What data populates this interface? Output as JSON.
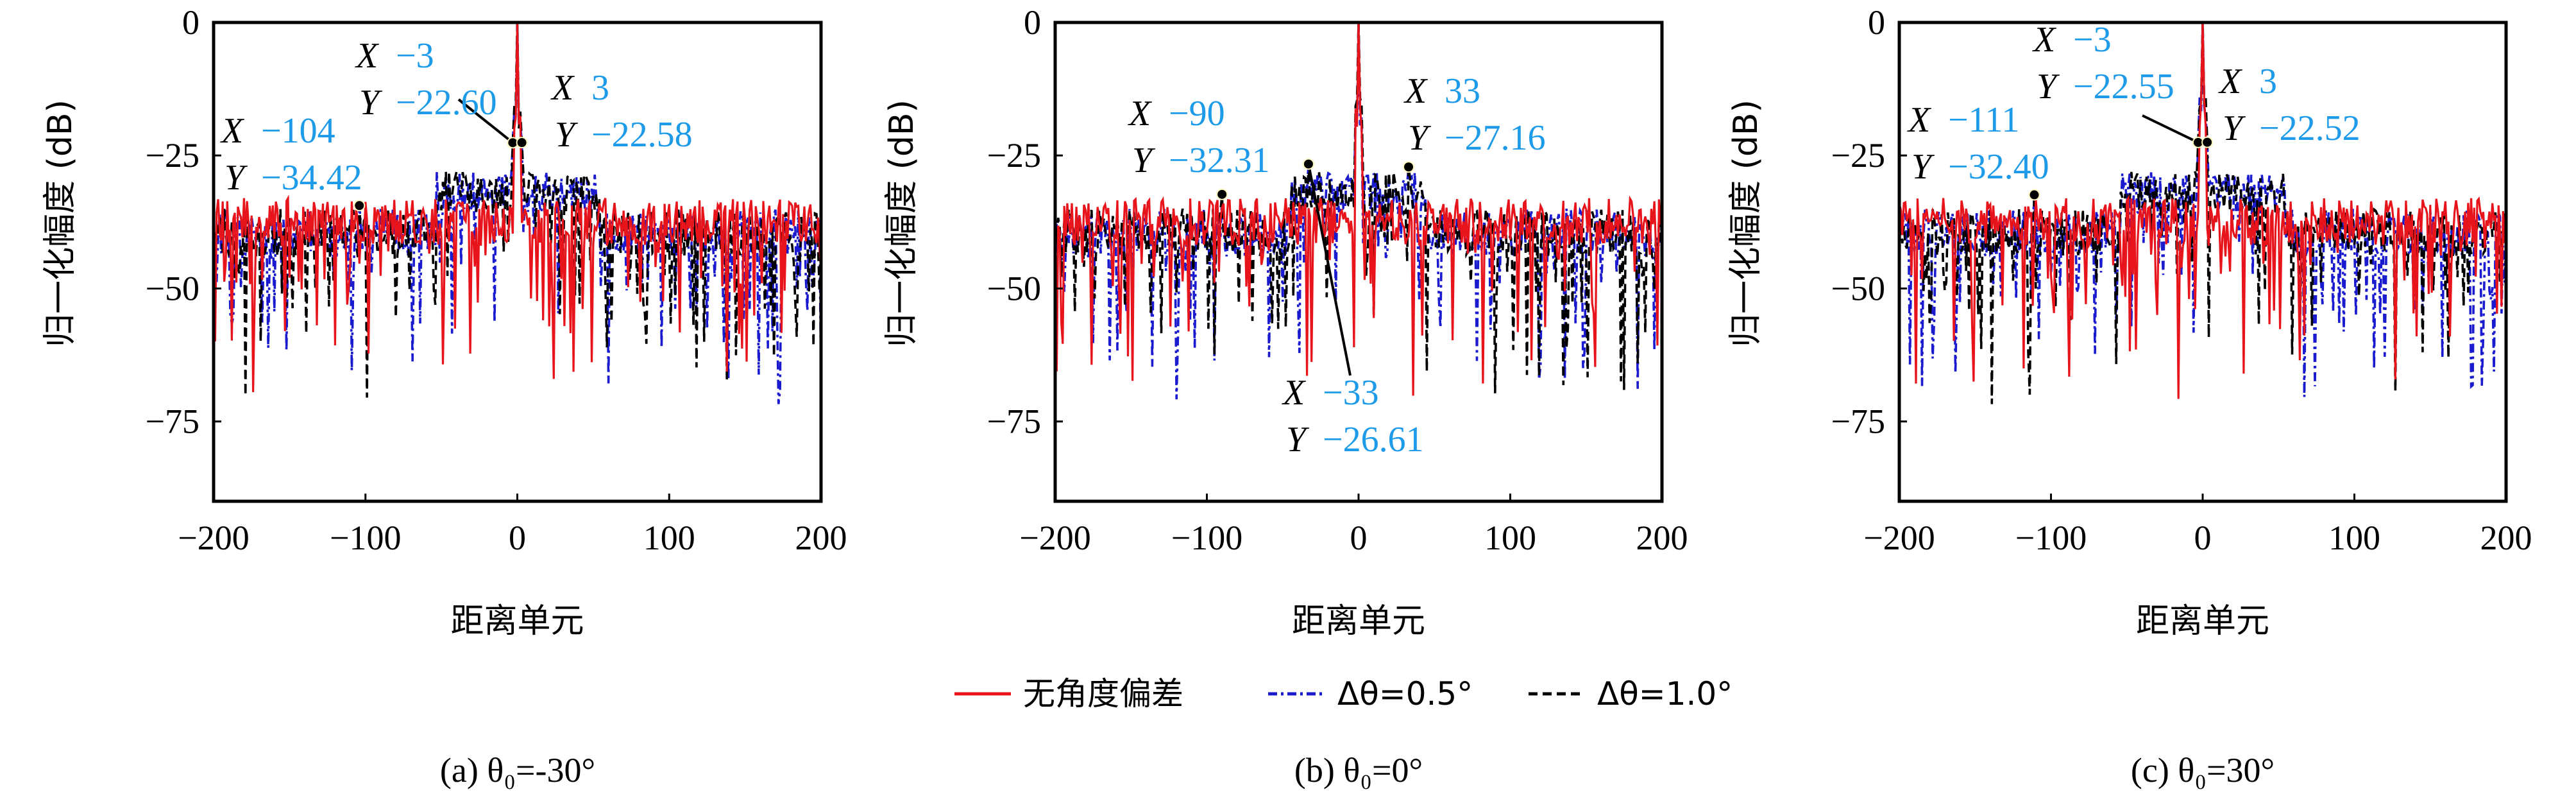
{
  "legend": {
    "items": [
      {
        "label": "无角度偏差",
        "color": "#E8141C",
        "style": "solid"
      },
      {
        "label": "Δθ=0.5°",
        "color": "#1A1ACF",
        "style": "dashdot"
      },
      {
        "label": "Δθ=1.0°",
        "color": "#000000",
        "style": "dashed"
      }
    ]
  },
  "chart_data": [
    {
      "type": "line",
      "panel": "a",
      "caption": "(a) θ₀=-30°",
      "xlabel": "距离单元",
      "ylabel": "归一化幅度 (dB)",
      "xlim": [
        -200,
        200
      ],
      "ylim": [
        -90,
        0
      ],
      "xticks": [
        -200,
        -100,
        0,
        100,
        200
      ],
      "yticks": [
        0,
        -25,
        -50,
        -75
      ],
      "xtick_labels": [
        "−200",
        "−100",
        "0",
        "100",
        "200"
      ],
      "ytick_labels": [
        "0",
        "−25",
        "−50",
        "−75"
      ],
      "series_names": [
        "无角度偏差",
        "Δθ=0.5°",
        "Δθ=1.0°"
      ],
      "peak": {
        "x": 0,
        "y": 0
      },
      "annotations": [
        {
          "x": -3,
          "y": -22.6,
          "x_text": "−3",
          "y_text": "−22.60"
        },
        {
          "x": 3,
          "y": -22.58,
          "x_text": "3",
          "y_text": "−22.58"
        },
        {
          "x": -104,
          "y": -34.42,
          "x_text": "−104",
          "y_text": "−34.42"
        }
      ]
    },
    {
      "type": "line",
      "panel": "b",
      "caption": "(b) θ₀=0°",
      "xlabel": "距离单元",
      "ylabel": "归一化幅度 (dB)",
      "xlim": [
        -200,
        200
      ],
      "ylim": [
        -90,
        0
      ],
      "xticks": [
        -200,
        -100,
        0,
        100,
        200
      ],
      "yticks": [
        0,
        -25,
        -50,
        -75
      ],
      "xtick_labels": [
        "−200",
        "−100",
        "0",
        "100",
        "200"
      ],
      "ytick_labels": [
        "0",
        "−25",
        "−50",
        "−75"
      ],
      "series_names": [
        "无角度偏差",
        "Δθ=0.5°",
        "Δθ=1.0°"
      ],
      "peak": {
        "x": 0,
        "y": 0
      },
      "annotations": [
        {
          "x": -90,
          "y": -32.31,
          "x_text": "−90",
          "y_text": "−32.31"
        },
        {
          "x": 33,
          "y": -27.16,
          "x_text": "33",
          "y_text": "−27.16"
        },
        {
          "x": -33,
          "y": -26.61,
          "x_text": "−33",
          "y_text": "−26.61"
        }
      ]
    },
    {
      "type": "line",
      "panel": "c",
      "caption": "(c) θ₀=30°",
      "xlabel": "距离单元",
      "ylabel": "归一化幅度 (dB)",
      "xlim": [
        -200,
        200
      ],
      "ylim": [
        -90,
        0
      ],
      "xticks": [
        -200,
        -100,
        0,
        100,
        200
      ],
      "yticks": [
        0,
        -25,
        -50,
        -75
      ],
      "xtick_labels": [
        "−200",
        "−100",
        "0",
        "100",
        "200"
      ],
      "ytick_labels": [
        "0",
        "−25",
        "−50",
        "−75"
      ],
      "series_names": [
        "无角度偏差",
        "Δθ=0.5°",
        "Δθ=1.0°"
      ],
      "peak": {
        "x": 0,
        "y": 0
      },
      "annotations": [
        {
          "x": -3,
          "y": -22.55,
          "x_text": "−3",
          "y_text": "−22.55"
        },
        {
          "x": 3,
          "y": -22.52,
          "x_text": "3",
          "y_text": "−22.52"
        },
        {
          "x": -111,
          "y": -32.4,
          "x_text": "−111",
          "y_text": "−32.40"
        }
      ]
    }
  ],
  "annotation_labels": {
    "x_key": "X",
    "y_key": "Y"
  }
}
